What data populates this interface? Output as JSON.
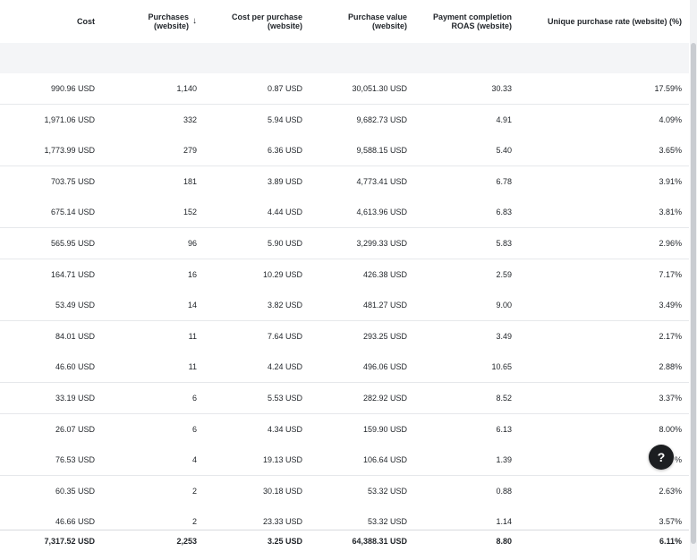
{
  "columns": [
    {
      "line1": "Cost",
      "line2": ""
    },
    {
      "line1": "Purchases",
      "line2": "(website)",
      "sort": "↓"
    },
    {
      "line1": "Cost per purchase",
      "line2": "(website)"
    },
    {
      "line1": "Purchase value",
      "line2": "(website)"
    },
    {
      "line1": "Payment completion",
      "line2": "ROAS (website)"
    },
    {
      "line1": "Unique purchase rate (website) (%)",
      "line2": ""
    }
  ],
  "rows": [
    [
      "990.96 USD",
      "1,140",
      "0.87 USD",
      "30,051.30 USD",
      "30.33",
      "17.59%"
    ],
    [
      "1,971.06 USD",
      "332",
      "5.94 USD",
      "9,682.73 USD",
      "4.91",
      "4.09%"
    ],
    [
      "1,773.99 USD",
      "279",
      "6.36 USD",
      "9,588.15 USD",
      "5.40",
      "3.65%"
    ],
    [
      "703.75 USD",
      "181",
      "3.89 USD",
      "4,773.41 USD",
      "6.78",
      "3.91%"
    ],
    [
      "675.14 USD",
      "152",
      "4.44 USD",
      "4,613.96 USD",
      "6.83",
      "3.81%"
    ],
    [
      "565.95 USD",
      "96",
      "5.90 USD",
      "3,299.33 USD",
      "5.83",
      "2.96%"
    ],
    [
      "164.71 USD",
      "16",
      "10.29 USD",
      "426.38 USD",
      "2.59",
      "7.17%"
    ],
    [
      "53.49 USD",
      "14",
      "3.82 USD",
      "481.27 USD",
      "9.00",
      "3.49%"
    ],
    [
      "84.01 USD",
      "11",
      "7.64 USD",
      "293.25 USD",
      "3.49",
      "2.17%"
    ],
    [
      "46.60 USD",
      "11",
      "4.24 USD",
      "496.06 USD",
      "10.65",
      "2.88%"
    ],
    [
      "33.19 USD",
      "6",
      "5.53 USD",
      "282.92 USD",
      "8.52",
      "3.37%"
    ],
    [
      "26.07 USD",
      "6",
      "4.34 USD",
      "159.90 USD",
      "6.13",
      "8.00%"
    ],
    [
      "76.53 USD",
      "4",
      "19.13 USD",
      "106.64 USD",
      "1.39",
      "%"
    ],
    [
      "60.35 USD",
      "2",
      "30.18 USD",
      "53.32 USD",
      "0.88",
      "2.63%"
    ],
    [
      "46.66 USD",
      "2",
      "23.33 USD",
      "53.32 USD",
      "1.14",
      "3.57%"
    ]
  ],
  "total": [
    "7,317.52 USD",
    "2,253",
    "3.25 USD",
    "64,388.31 USD",
    "8.80",
    "6.11%"
  ],
  "help_label": "?",
  "icons": {
    "help": "question-circle-icon",
    "sort": "arrow-down-icon"
  },
  "colors": {
    "header_bg": "#ffffff",
    "subheader_bg": "#f4f5f7",
    "help_bg": "#1c1e21",
    "text": "#1f2328"
  }
}
